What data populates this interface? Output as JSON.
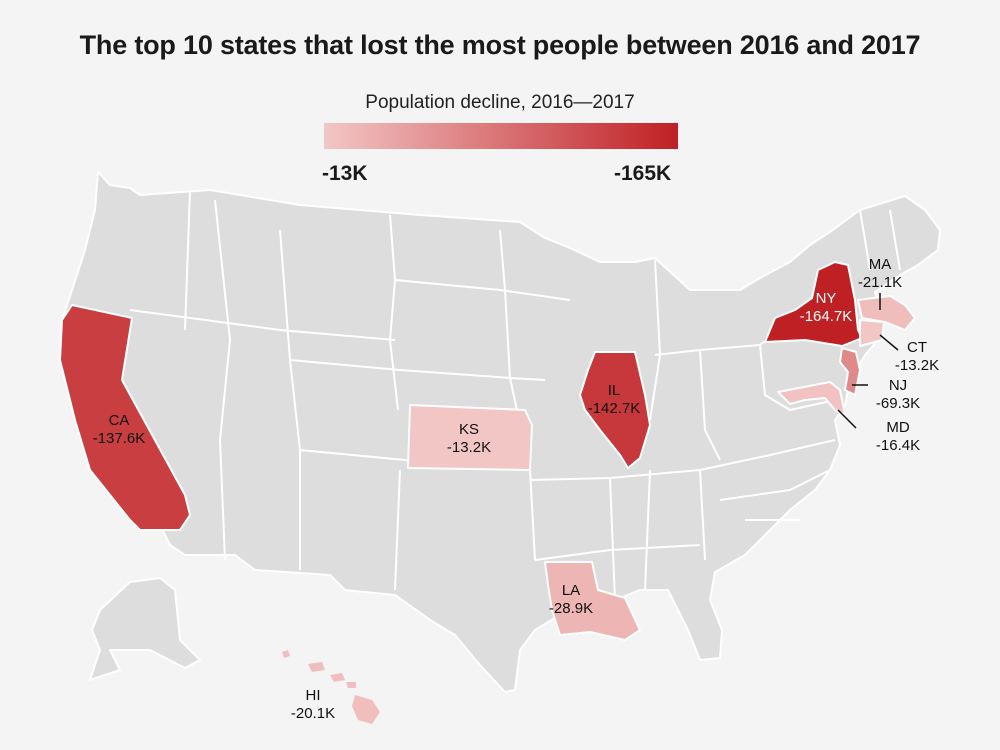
{
  "title": "The top 10 states that lost the most people between 2016 and 2017",
  "legend": {
    "title": "Population decline, 2016—2017",
    "min_label": "-13K",
    "max_label": "-165K",
    "color_low": "#f3c6c6",
    "color_high": "#bf2024"
  },
  "base_color": "#dddddd",
  "chart_data": {
    "type": "choropleth",
    "title": "The top 10 states that lost the most people between 2016 and 2017",
    "legend_title": "Population decline, 2016—2017",
    "scale_range_k": [
      -13,
      -165
    ],
    "regions": [
      {
        "state": "CA",
        "value_label": "-137.6K",
        "value_k": -137.6
      },
      {
        "state": "KS",
        "value_label": "-13.2K",
        "value_k": -13.2
      },
      {
        "state": "IL",
        "value_label": "-142.7K",
        "value_k": -142.7
      },
      {
        "state": "NY",
        "value_label": "-164.7K",
        "value_k": -164.7
      },
      {
        "state": "MA",
        "value_label": "-21.1K",
        "value_k": -21.1
      },
      {
        "state": "CT",
        "value_label": "-13.2K",
        "value_k": -13.2
      },
      {
        "state": "NJ",
        "value_label": "-69.3K",
        "value_k": -69.3
      },
      {
        "state": "MD",
        "value_label": "-16.4K",
        "value_k": -16.4
      },
      {
        "state": "LA",
        "value_label": "-28.9K",
        "value_k": -28.9
      },
      {
        "state": "HI",
        "value_label": "-20.1K",
        "value_k": -20.1
      }
    ]
  }
}
